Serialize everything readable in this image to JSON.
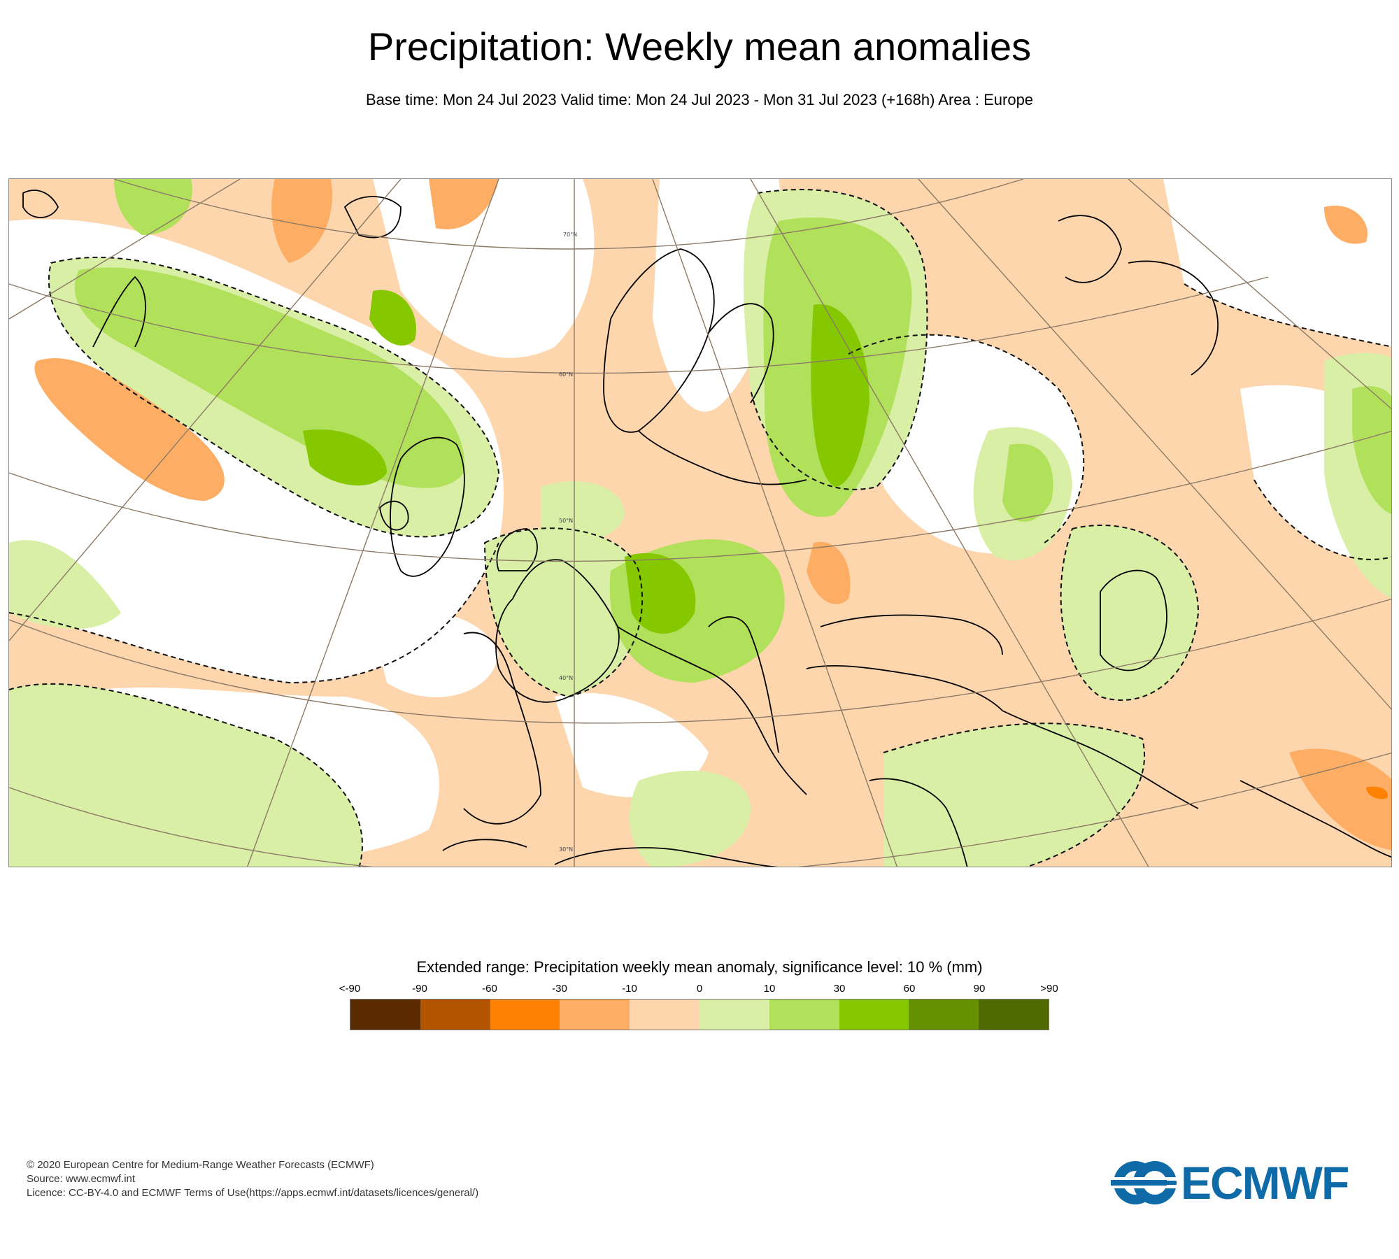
{
  "title": "Precipitation: Weekly mean anomalies",
  "subtitle": "Base time: Mon 24 Jul 2023 Valid time: Mon 24 Jul 2023 - Mon 31 Jul 2023 (+168h) Area : Europe",
  "map": {
    "lat_labels": [
      "70°N",
      "60°N",
      "50°N",
      "40°N",
      "30°N"
    ],
    "colors": {
      "neutral": "#ffffff",
      "pos_10": "#d9efa6",
      "pos_30": "#b1e05b",
      "pos_60": "#86c800",
      "neg_10": "#fdd6ae",
      "neg_30": "#fdae64",
      "neg_60": "#fe8102",
      "coast": "#000000",
      "grid": "#8c7a66"
    }
  },
  "legend": {
    "title": "Extended range: Precipitation weekly mean anomaly, significance level: 10 % (mm)",
    "ticks": [
      "<-90",
      "-90",
      "-60",
      "-30",
      "-10",
      "0",
      "10",
      "30",
      "60",
      "90",
      ">90"
    ],
    "colors": [
      "#5a2a00",
      "#b25400",
      "#fe8102",
      "#fdae64",
      "#fdd6ae",
      "#d9efa6",
      "#b1e05b",
      "#86c800",
      "#669000",
      "#4f6a00"
    ]
  },
  "credits": {
    "line1": "© 2020 European Centre for Medium-Range Weather Forecasts (ECMWF)",
    "line2": "Source: www.ecmwf.int",
    "line3": "Licence: CC-BY-4.0 and ECMWF Terms of Use(https://apps.ecmwf.int/datasets/licences/general/)"
  },
  "logo": {
    "text": "ECMWF",
    "color": "#0f6ba8"
  }
}
